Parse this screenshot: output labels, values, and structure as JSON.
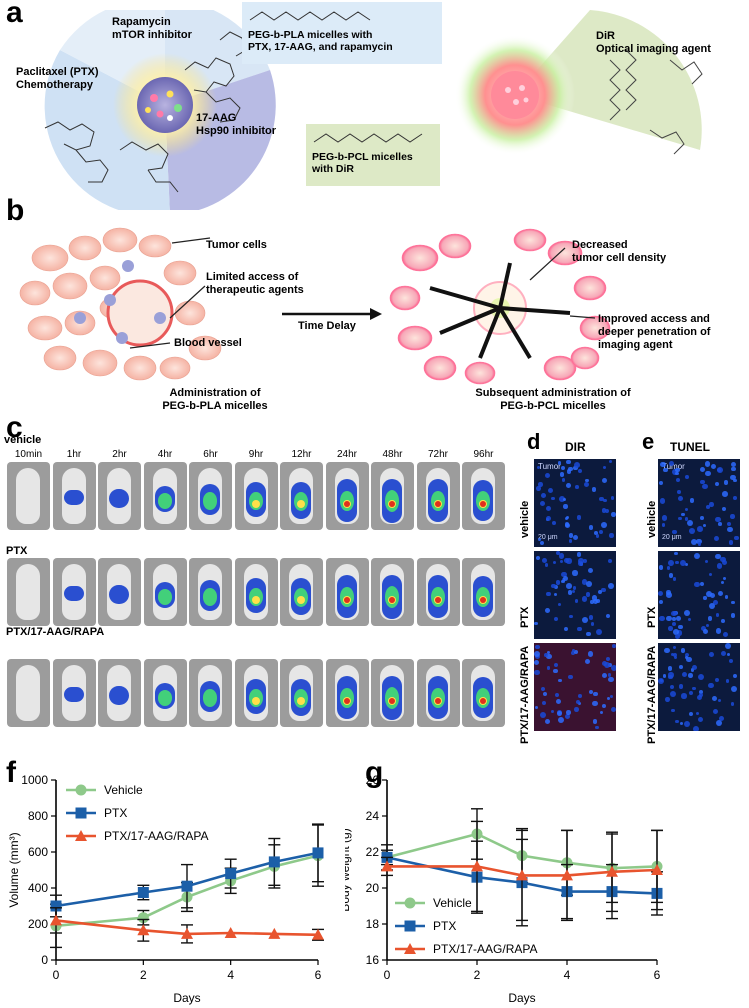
{
  "panels": {
    "a": "a",
    "b": "b",
    "c": "c",
    "d": "d",
    "e": "e",
    "f": "f",
    "g": "g"
  },
  "panel_a": {
    "rapamycin": "Rapamycin\nmTOR inhibitor",
    "paclitaxel": "Paclitaxel (PTX)\nChemotherapy",
    "aag": "17-AAG\nHsp90 inhibitor",
    "pla_box": "PEG-b-PLA micelles with\nPTX, 17-AAG, and rapamycin",
    "pcl_box": "PEG-b-PCL micelles\nwith DiR",
    "dir": "DiR\nOptical imaging agent"
  },
  "panel_b": {
    "tumor_cells": "Tumor cells",
    "limited_access": "Limited access of\ntherapeutic agents",
    "blood_vessel": "Blood vessel",
    "time_delay": "Time Delay",
    "decreased": "Decreased\ntumor cell density",
    "improved": "Improved access and\ndeeper penetration of\nimaging agent",
    "admin_left": "Administration of\nPEG-b-PLA micelles",
    "admin_right": "Subsequent administration of\nPEG-b-PCL micelles"
  },
  "panel_c": {
    "rows": [
      "vehicle",
      "PTX",
      "PTX/17-AAG/RAPA"
    ],
    "times": [
      "10min",
      "1hr",
      "2hr",
      "4hr",
      "6hr",
      "9hr",
      "12hr",
      "24hr",
      "48hr",
      "72hr",
      "96hr"
    ],
    "intensity": [
      0,
      0.15,
      0.25,
      0.45,
      0.6,
      0.7,
      0.75,
      0.9,
      0.95,
      0.9,
      0.85
    ]
  },
  "panel_d": {
    "title": "DIR",
    "rows": [
      "vehicle",
      "PTX",
      "PTX/17-AAG/RAPA"
    ],
    "tumor": "Tumor",
    "scale": "20 μm"
  },
  "panel_e": {
    "title": "TUNEL",
    "rows": [
      "vehicle",
      "PTX",
      "PTX/17-AAG/RAPA"
    ],
    "tumor": "Tumor",
    "scale": "20 μm"
  },
  "colors": {
    "vehicle": "#8ec98a",
    "ptx": "#1c5fa8",
    "combo": "#e8542e"
  },
  "chart_data": [
    {
      "type": "line",
      "xlabel": "Days",
      "ylabel": "Volume (mm³)",
      "xlim": [
        0,
        6
      ],
      "ylim": [
        0,
        1000
      ],
      "xticks": [
        0,
        2,
        4,
        6
      ],
      "yticks": [
        0,
        200,
        400,
        600,
        800,
        1000
      ],
      "legend": "top-left",
      "series": [
        {
          "name": "Vehicle",
          "x": [
            0,
            2,
            3,
            4,
            5,
            6
          ],
          "y": [
            190,
            235,
            350,
            440,
            520,
            580
          ],
          "err": [
            120,
            40,
            80,
            70,
            120,
            170
          ]
        },
        {
          "name": "PTX",
          "x": [
            0,
            2,
            3,
            4,
            5,
            6
          ],
          "y": [
            300,
            375,
            410,
            480,
            545,
            595
          ],
          "err": [
            60,
            40,
            120,
            80,
            130,
            160
          ]
        },
        {
          "name": "PTX/17-AAG/RAPA",
          "x": [
            0,
            2,
            3,
            4,
            5,
            6
          ],
          "y": [
            220,
            165,
            145,
            150,
            145,
            140
          ],
          "err": [
            70,
            60,
            50,
            0,
            0,
            30
          ]
        }
      ]
    },
    {
      "type": "line",
      "xlabel": "Days",
      "ylabel": "Body weight (g)",
      "xlim": [
        0,
        6
      ],
      "ylim": [
        16,
        26
      ],
      "xticks": [
        0,
        2,
        4,
        6
      ],
      "yticks": [
        16,
        18,
        20,
        22,
        24,
        26
      ],
      "legend": "bottom-left",
      "series": [
        {
          "name": "Vehicle",
          "x": [
            0,
            2,
            3,
            4,
            5,
            6
          ],
          "y": [
            21.7,
            23.0,
            21.8,
            21.4,
            21.1,
            21.2
          ],
          "err": [
            0.7,
            1.4,
            1.5,
            1.8,
            1.9,
            2.0
          ]
        },
        {
          "name": "PTX",
          "x": [
            0,
            2,
            3,
            4,
            5,
            6
          ],
          "y": [
            21.7,
            20.6,
            20.3,
            19.8,
            19.8,
            19.7
          ],
          "err": [
            0.4,
            2.0,
            2.4,
            1.5,
            1.5,
            1.2
          ]
        },
        {
          "name": "PTX/17-AAG/RAPA",
          "x": [
            0,
            2,
            3,
            4,
            5,
            6
          ],
          "y": [
            21.2,
            21.2,
            20.7,
            20.7,
            20.9,
            21.0
          ],
          "err": [
            0.5,
            2.5,
            2.5,
            2.5,
            2.2,
            2.2
          ]
        }
      ]
    }
  ]
}
